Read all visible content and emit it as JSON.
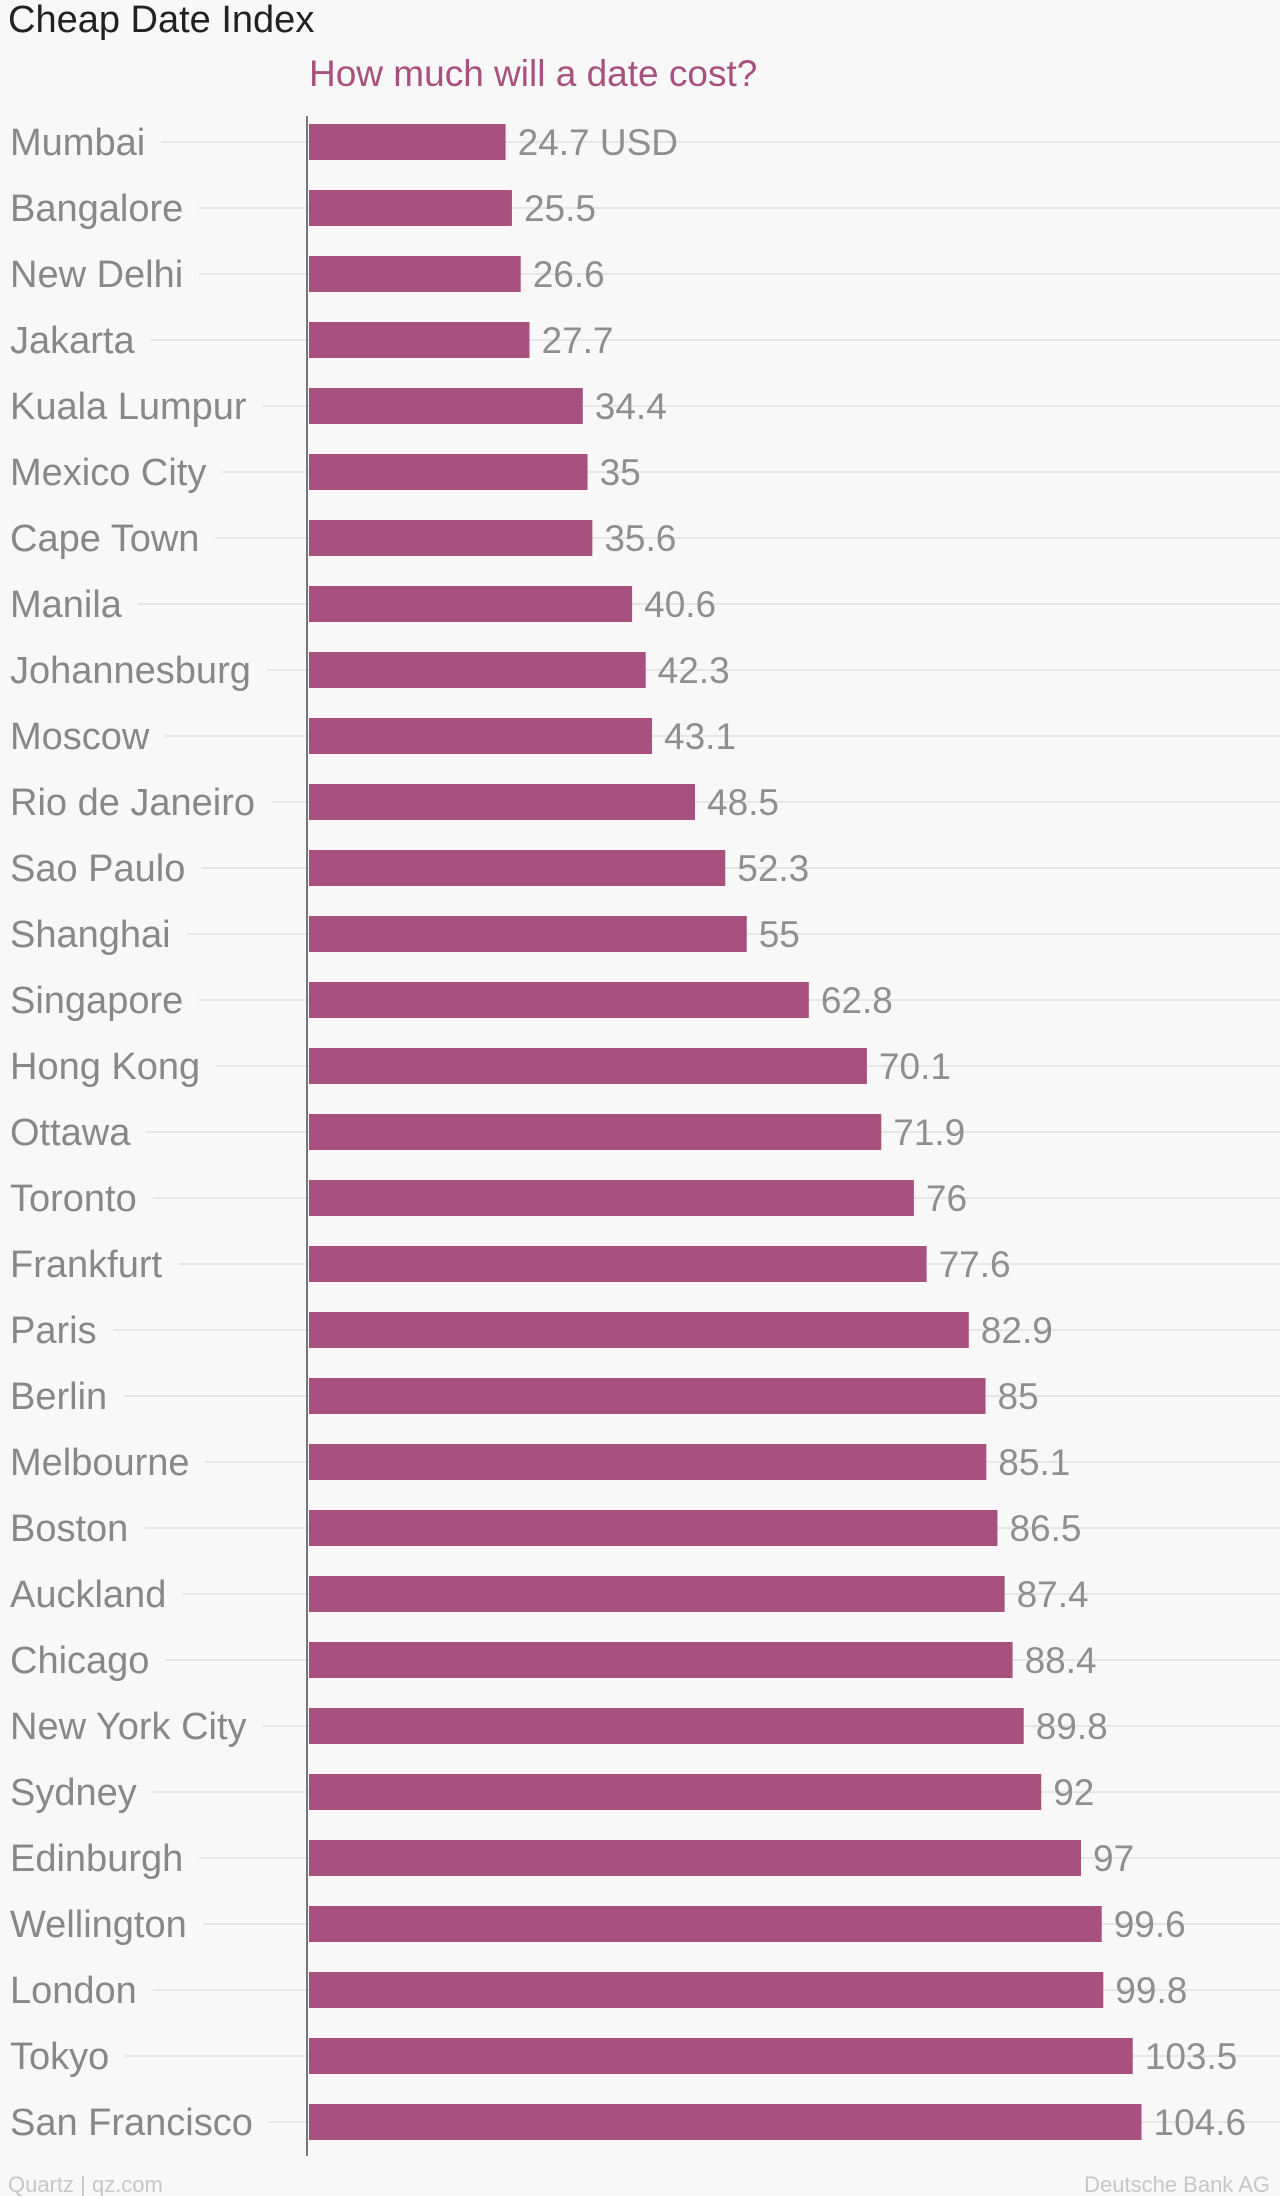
{
  "chart_data": {
    "type": "bar",
    "orientation": "horizontal",
    "title": "Cheap Date Index",
    "subtitle": "How much will a date cost?",
    "unit": "USD",
    "categories": [
      "Mumbai",
      "Bangalore",
      "New Delhi",
      "Jakarta",
      "Kuala Lumpur",
      "Mexico City",
      "Cape Town",
      "Manila",
      "Johannesburg",
      "Moscow",
      "Rio de Janeiro",
      "Sao Paulo",
      "Shanghai",
      "Singapore",
      "Hong Kong",
      "Ottawa",
      "Toronto",
      "Frankfurt",
      "Paris",
      "Berlin",
      "Melbourne",
      "Boston",
      "Auckland",
      "Chicago",
      "New York City",
      "Sydney",
      "Edinburgh",
      "Wellington",
      "London",
      "Tokyo",
      "San Francisco"
    ],
    "values": [
      24.7,
      25.5,
      26.6,
      27.7,
      34.4,
      35,
      35.6,
      40.6,
      42.3,
      43.1,
      48.5,
      52.3,
      55,
      62.8,
      70.1,
      71.9,
      76,
      77.6,
      82.9,
      85,
      85.1,
      86.5,
      87.4,
      88.4,
      89.8,
      92,
      97,
      99.6,
      99.8,
      103.5,
      104.6
    ],
    "value_labels": [
      "24.7 USD",
      "25.5",
      "26.6",
      "27.7",
      "34.4",
      "35",
      "35.6",
      "40.6",
      "42.3",
      "43.1",
      "48.5",
      "52.3",
      "55",
      "62.8",
      "70.1",
      "71.9",
      "76",
      "77.6",
      "82.9",
      "85",
      "85.1",
      "86.5",
      "87.4",
      "88.4",
      "89.8",
      "92",
      "97",
      "99.6",
      "99.8",
      "103.5",
      "104.6"
    ],
    "xlim": [
      0,
      122
    ],
    "bar_color": "#a8517f",
    "grid": true,
    "source": "Deutsche Bank AG",
    "credit": "Quartz | qz.com"
  }
}
